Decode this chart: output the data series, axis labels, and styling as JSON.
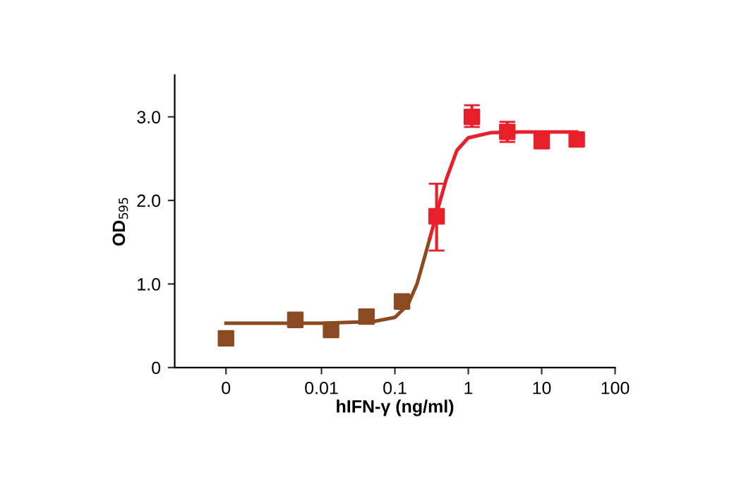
{
  "chart_data": {
    "type": "scatter",
    "xlabel": "hIFN-γ (ng/ml)",
    "ylabel": "OD$_{595}$",
    "log": "x",
    "marker": "square",
    "grid": false,
    "legend": false,
    "xlim": [
      0.0001,
      100
    ],
    "xticks": [
      {
        "value": 0.0005,
        "label": "0"
      },
      0.01,
      0.1,
      1,
      10,
      100
    ],
    "ylim": [
      0,
      3.5
    ],
    "yticks": [
      0,
      {
        "value": 1,
        "label": "1.0"
      },
      {
        "value": 2,
        "label": "2.0"
      },
      {
        "value": 3,
        "label": "3.0"
      }
    ],
    "series": [
      {
        "x": [
          0.0005,
          0.0044,
          0.0135,
          0.041,
          0.125,
          0.37,
          1.12,
          3.4,
          10,
          30
        ],
        "values": [
          0.35,
          0.57,
          0.45,
          0.61,
          0.79,
          1.81,
          3.0,
          2.82,
          2.71,
          2.73
        ],
        "colors": [
          "#8b4a1f",
          "#8b4a1f",
          "#8b4a1f",
          "#8b4a1f",
          "#8b4a1f",
          "#e8202a",
          "#e8202a",
          "#e8202a",
          "#e8202a",
          "#e8202a"
        ],
        "errors": [
          0.08,
          null,
          null,
          null,
          null,
          [
            1.4,
            2.2
          ],
          [
            2.88,
            3.14
          ],
          [
            2.7,
            2.94
          ],
          null,
          null
        ]
      },
      {
        "type": "line",
        "color": "#8b4a1f",
        "marker": "none",
        "x": [
          0.0005,
          0.01,
          0.05,
          0.1,
          0.15,
          0.2,
          0.25,
          0.3
        ],
        "values": [
          0.53,
          0.53,
          0.55,
          0.6,
          0.75,
          1.0,
          1.3,
          1.55
        ]
      },
      {
        "type": "line",
        "color": "#e8202a",
        "marker": "none",
        "x": [
          0.3,
          0.4,
          0.5,
          0.7,
          1,
          2,
          5,
          30
        ],
        "values": [
          1.55,
          1.95,
          2.25,
          2.6,
          2.75,
          2.81,
          2.82,
          2.82
        ]
      }
    ]
  }
}
